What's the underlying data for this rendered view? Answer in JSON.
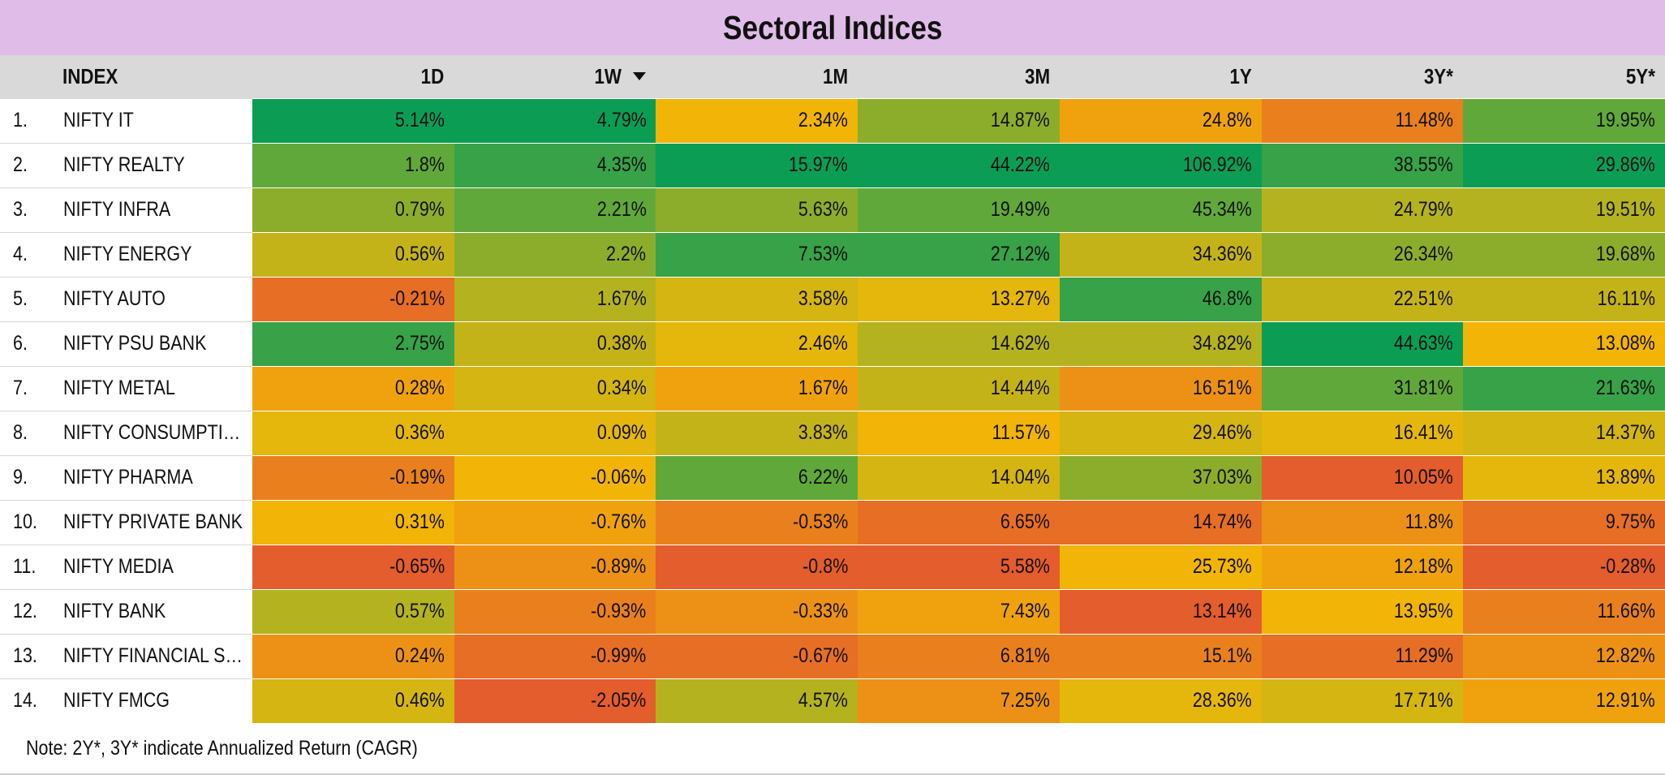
{
  "title": "Sectoral Indices",
  "note": "Note: 2Y*, 3Y* indicate Annualized Return (CAGR)",
  "colors": {
    "title_bg": "#e0bde8",
    "header_bg": "#d9d9d9",
    "scale_low": "#e45d2c",
    "scale_mid": "#f2b705",
    "scale_high": "#0c9d55"
  },
  "chart_data": {
    "type": "table",
    "title": "Sectoral Indices",
    "index_header": "INDEX",
    "sort_column": "1W",
    "sort_indicator": "sort-descending-icon",
    "columns": [
      "1D",
      "1W",
      "1M",
      "3M",
      "1Y",
      "3Y*",
      "5Y*"
    ],
    "rows": [
      {
        "rank": "1.",
        "index": "NIFTY IT",
        "values": [
          "5.14%",
          "4.79%",
          "2.34%",
          "14.87%",
          "24.8%",
          "11.48%",
          "19.95%"
        ]
      },
      {
        "rank": "2.",
        "index": "NIFTY REALTY",
        "values": [
          "1.8%",
          "4.35%",
          "15.97%",
          "44.22%",
          "106.92%",
          "38.55%",
          "29.86%"
        ]
      },
      {
        "rank": "3.",
        "index": "NIFTY INFRA",
        "values": [
          "0.79%",
          "2.21%",
          "5.63%",
          "19.49%",
          "45.34%",
          "24.79%",
          "19.51%"
        ]
      },
      {
        "rank": "4.",
        "index": "NIFTY ENERGY",
        "values": [
          "0.56%",
          "2.2%",
          "7.53%",
          "27.12%",
          "34.36%",
          "26.34%",
          "19.68%"
        ]
      },
      {
        "rank": "5.",
        "index": "NIFTY AUTO",
        "values": [
          "-0.21%",
          "1.67%",
          "3.58%",
          "13.27%",
          "46.8%",
          "22.51%",
          "16.11%"
        ]
      },
      {
        "rank": "6.",
        "index": "NIFTY PSU BANK",
        "values": [
          "2.75%",
          "0.38%",
          "2.46%",
          "14.62%",
          "34.82%",
          "44.63%",
          "13.08%"
        ]
      },
      {
        "rank": "7.",
        "index": "NIFTY METAL",
        "values": [
          "0.28%",
          "0.34%",
          "1.67%",
          "14.44%",
          "16.51%",
          "31.81%",
          "21.63%"
        ]
      },
      {
        "rank": "8.",
        "index": "NIFTY CONSUMPTI…",
        "values": [
          "0.36%",
          "0.09%",
          "3.83%",
          "11.57%",
          "29.46%",
          "16.41%",
          "14.37%"
        ]
      },
      {
        "rank": "9.",
        "index": "NIFTY PHARMA",
        "values": [
          "-0.19%",
          "-0.06%",
          "6.22%",
          "14.04%",
          "37.03%",
          "10.05%",
          "13.89%"
        ]
      },
      {
        "rank": "10.",
        "index": "NIFTY PRIVATE BANK",
        "values": [
          "0.31%",
          "-0.76%",
          "-0.53%",
          "6.65%",
          "14.74%",
          "11.8%",
          "9.75%"
        ]
      },
      {
        "rank": "11.",
        "index": "NIFTY MEDIA",
        "values": [
          "-0.65%",
          "-0.89%",
          "-0.8%",
          "5.58%",
          "25.73%",
          "12.18%",
          "-0.28%"
        ]
      },
      {
        "rank": "12.",
        "index": "NIFTY BANK",
        "values": [
          "0.57%",
          "-0.93%",
          "-0.33%",
          "7.43%",
          "13.14%",
          "13.95%",
          "11.66%"
        ]
      },
      {
        "rank": "13.",
        "index": "NIFTY FINANCIAL S…",
        "values": [
          "0.24%",
          "-0.99%",
          "-0.67%",
          "6.81%",
          "15.1%",
          "11.29%",
          "12.82%"
        ]
      },
      {
        "rank": "14.",
        "index": "NIFTY FMCG",
        "values": [
          "0.46%",
          "-2.05%",
          "4.57%",
          "7.25%",
          "28.36%",
          "17.71%",
          "12.91%"
        ]
      }
    ]
  }
}
